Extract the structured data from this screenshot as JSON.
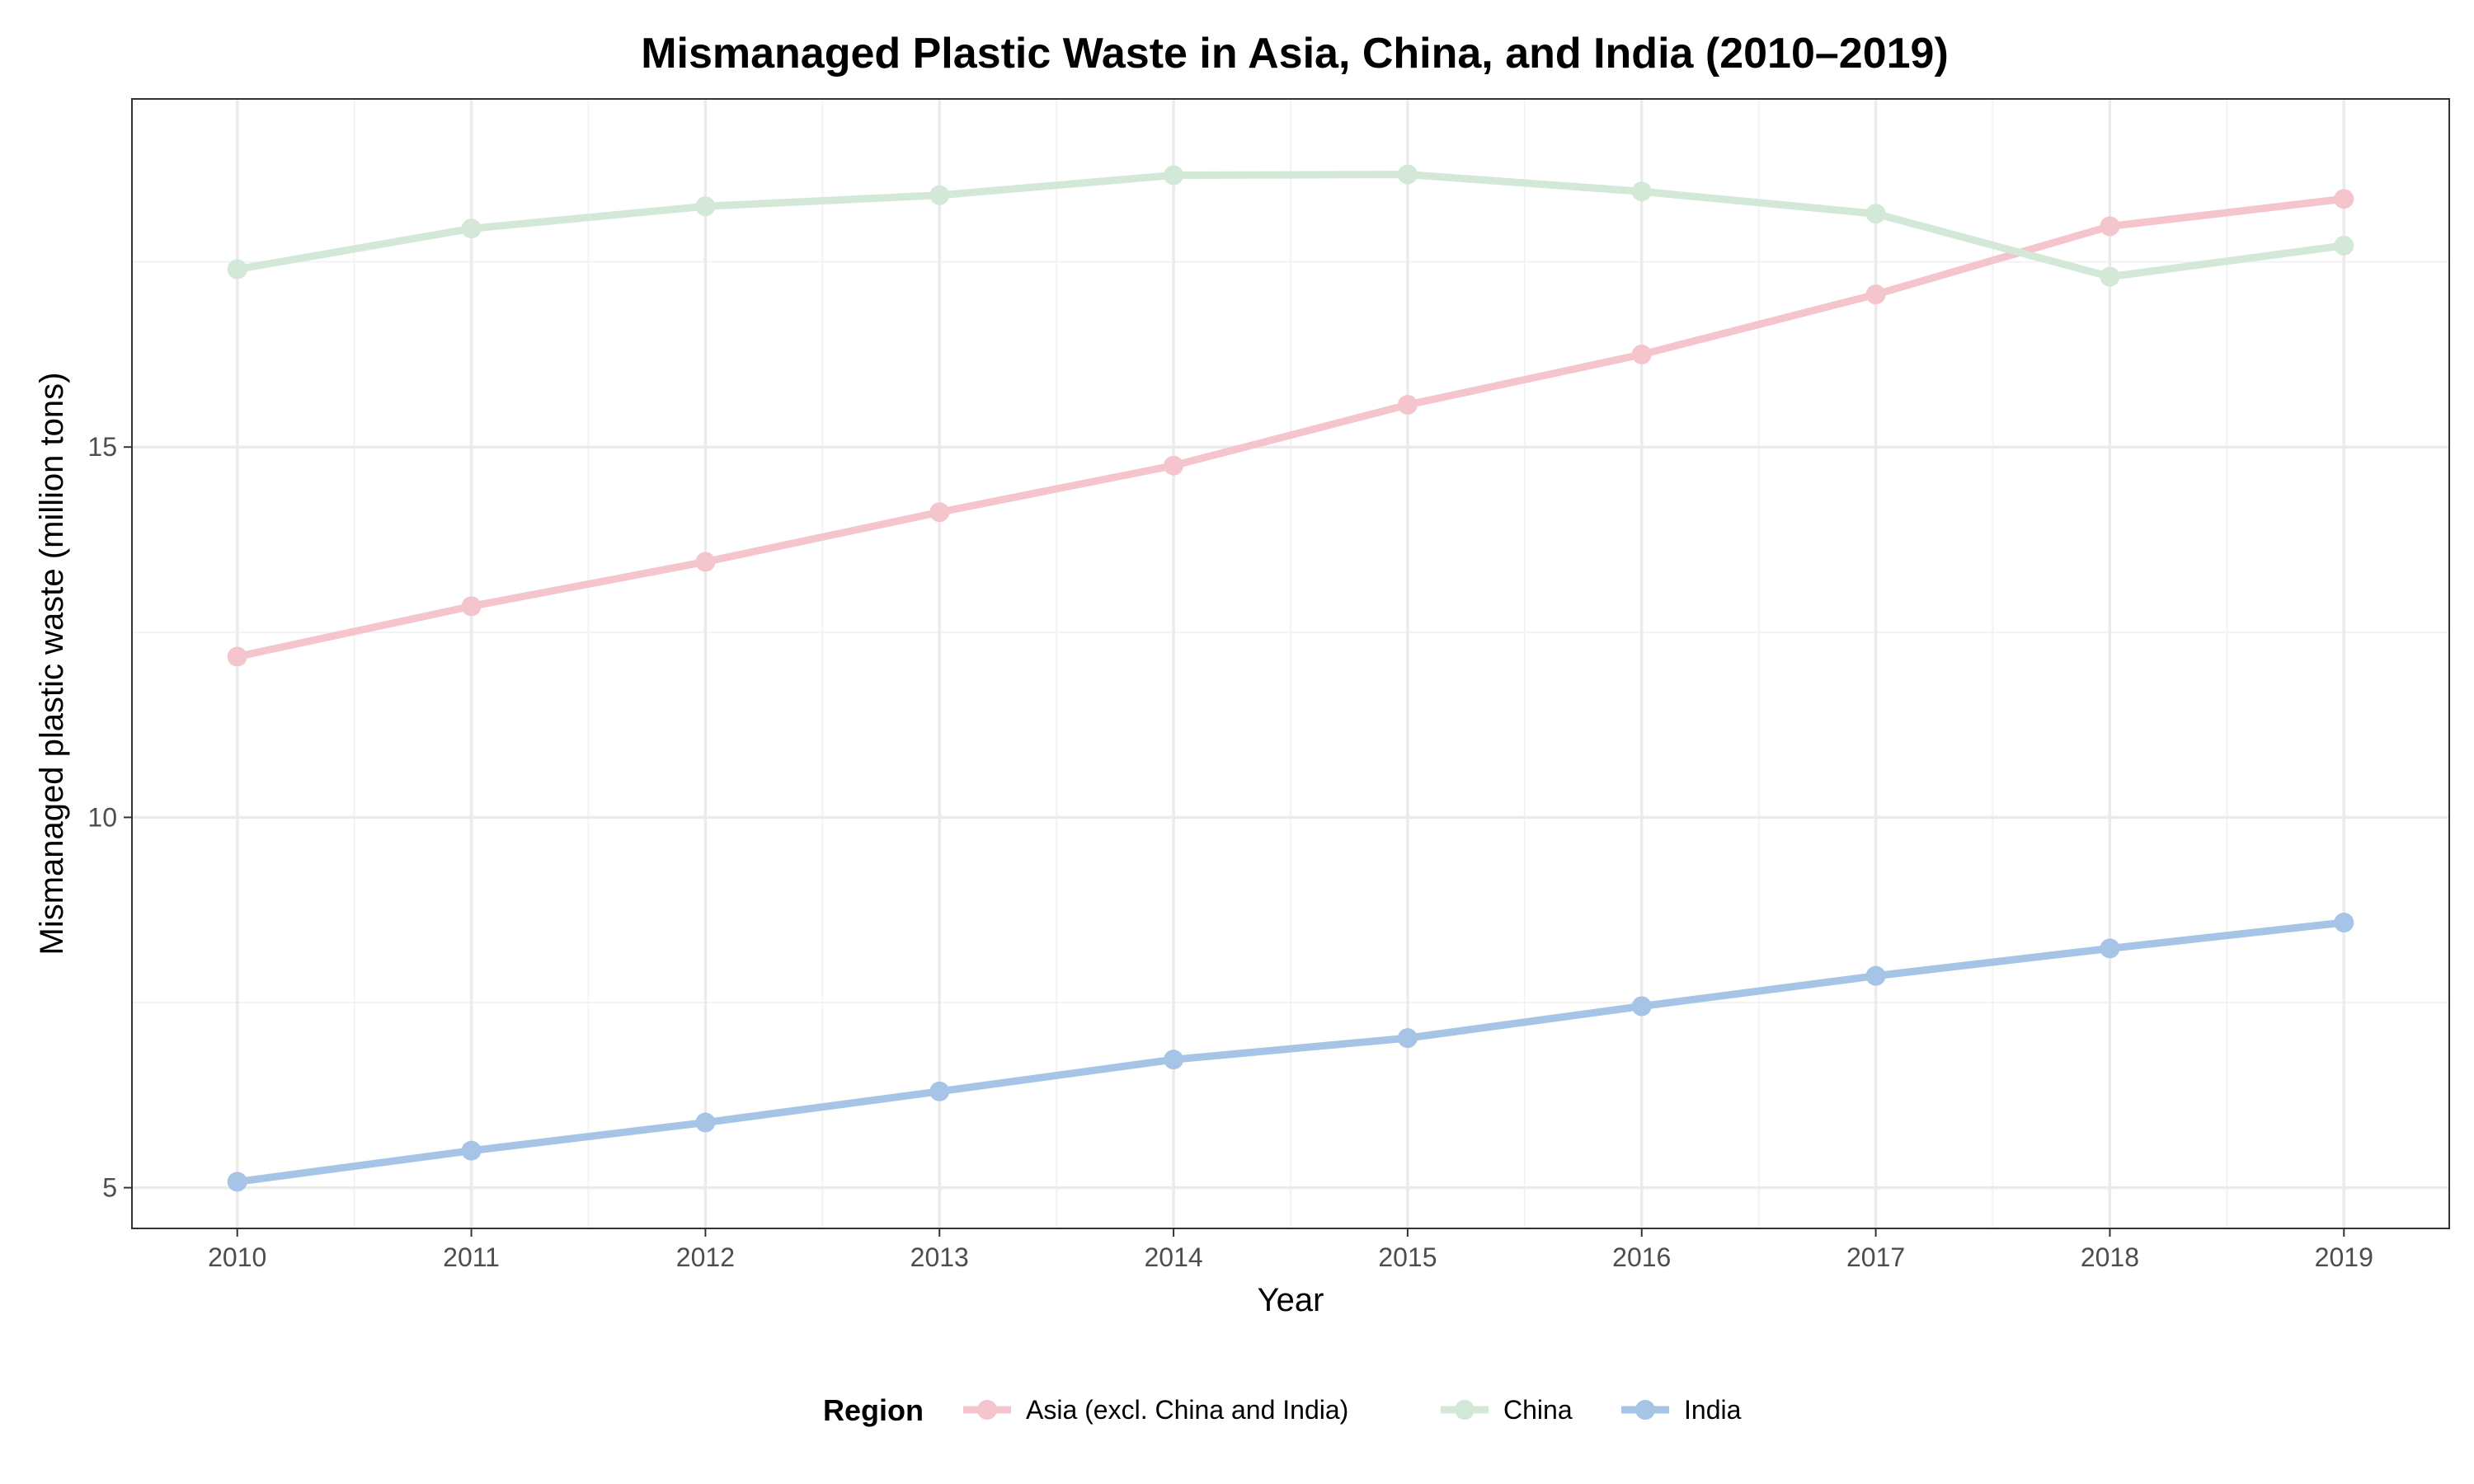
{
  "chart_data": {
    "type": "line",
    "title": "Mismanaged Plastic Waste in Asia, China, and India (2010–2019)",
    "xlabel": "Year",
    "ylabel": "Mismanaged plastic waste (million tons)",
    "x": [
      2010,
      2011,
      2012,
      2013,
      2014,
      2015,
      2016,
      2017,
      2018,
      2019
    ],
    "xlim": [
      2009.55,
      2019.45
    ],
    "ylim": [
      4.45,
      19.7
    ],
    "yticks": [
      5,
      10,
      15
    ],
    "grid": true,
    "legend": {
      "title": "Region",
      "position": "bottom"
    },
    "series": [
      {
        "name": "Asia (excl. China and India)",
        "color": "#F4C5CD",
        "values": [
          12.17,
          12.85,
          13.45,
          14.12,
          14.75,
          15.57,
          16.25,
          17.06,
          17.98,
          18.35
        ]
      },
      {
        "name": "China",
        "color": "#D3E8D6",
        "values": [
          17.4,
          17.95,
          18.25,
          18.4,
          18.67,
          18.68,
          18.45,
          18.15,
          17.3,
          17.72
        ]
      },
      {
        "name": "India",
        "color": "#A6C4E6",
        "values": [
          5.08,
          5.5,
          5.88,
          6.3,
          6.73,
          7.02,
          7.45,
          7.86,
          8.23,
          8.58
        ]
      }
    ]
  }
}
